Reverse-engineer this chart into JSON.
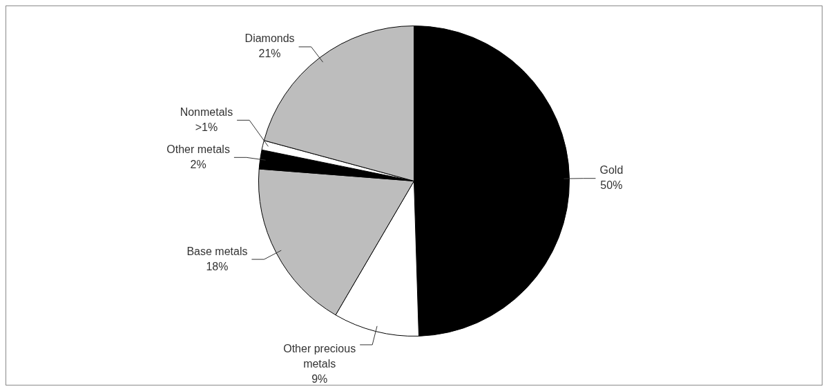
{
  "chart_data": {
    "type": "pie",
    "categories": [
      "Gold",
      "Other precious metals",
      "Base metals",
      "Other metals",
      "Nonmetals",
      "Diamonds"
    ],
    "values": [
      50,
      9,
      18,
      2,
      1,
      21
    ],
    "colors": [
      "#000000",
      "#ffffff",
      "#bdbdbd",
      "#000000",
      "#ffffff",
      "#bdbdbd"
    ],
    "value_labels": [
      "50%",
      "9%",
      "18%",
      "2%",
      ">1%",
      "21%"
    ],
    "legend": false
  }
}
